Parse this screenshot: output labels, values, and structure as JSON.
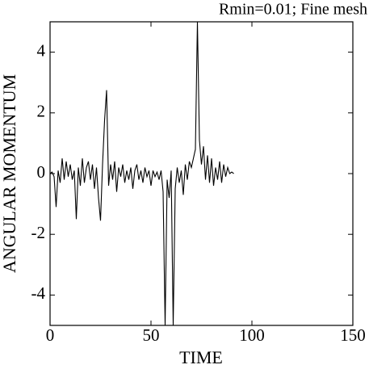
{
  "chart_data": {
    "type": "line",
    "title": "Rmin=0.01; Fine mesh",
    "x_label": "TIME",
    "y_label": "ANGULAR MOMENTUM",
    "x": [
      0,
      1,
      2,
      3,
      4,
      5,
      6,
      7,
      8,
      9,
      10,
      11,
      12,
      13,
      14,
      15,
      16,
      17,
      18,
      19,
      20,
      21,
      22,
      23,
      24,
      25,
      26,
      27,
      28,
      29,
      30,
      31,
      32,
      33,
      34,
      35,
      36,
      37,
      38,
      39,
      40,
      41,
      42,
      43,
      44,
      45,
      46,
      47,
      48,
      49,
      50,
      51,
      52,
      53,
      54,
      55,
      56,
      57,
      58,
      59,
      60,
      61,
      62,
      63,
      64,
      65,
      66,
      67,
      68,
      69,
      70,
      71,
      72,
      73,
      74,
      75,
      76,
      77,
      78,
      79,
      80,
      81,
      82,
      83,
      84,
      85,
      86,
      87,
      88,
      89,
      90,
      91
    ],
    "series": [
      {
        "color": "#000000",
        "values": [
          0,
          0.05,
          -0.1,
          -1.1,
          0.1,
          -0.3,
          0.5,
          -0.2,
          0.4,
          -0.1,
          0.3,
          -0.2,
          0.1,
          -1.5,
          0.2,
          -0.4,
          0.5,
          -0.3,
          0.2,
          0.4,
          -0.2,
          0.3,
          -0.5,
          0.2,
          -0.8,
          -1.55,
          0.3,
          1.75,
          2.75,
          -0.4,
          0.3,
          -0.2,
          0.4,
          -0.6,
          0.2,
          -0.1,
          0.3,
          -0.3,
          0.1,
          -0.2,
          0.2,
          -0.5,
          0.1,
          0.3,
          -0.2,
          0.1,
          -0.3,
          0.2,
          -0.1,
          0.1,
          -0.4,
          0.1,
          -0.1,
          0.05,
          -0.2,
          0.1,
          -0.6,
          -5,
          -0.2,
          -0.8,
          0.1,
          -5,
          -0.5,
          0.2,
          -0.3,
          0.1,
          -0.7,
          0.3,
          -0.2,
          0.4,
          0.2,
          0.5,
          0.8,
          5,
          1.1,
          0.3,
          0.9,
          -0.2,
          0.6,
          -0.3,
          0.5,
          -0.4,
          0.2,
          -0.2,
          0.4,
          -0.3,
          0.3,
          -0.1,
          0.2,
          0,
          0.05,
          0
        ]
      }
    ],
    "xlim": [
      0,
      150
    ],
    "xticks": [
      0,
      50,
      100,
      150
    ],
    "ylim": [
      -5,
      5
    ],
    "yticks": [
      -4,
      -2,
      0,
      2,
      4
    ]
  }
}
